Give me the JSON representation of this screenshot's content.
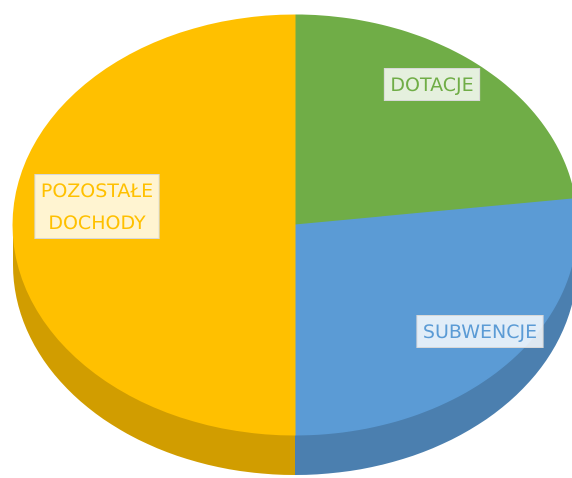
{
  "chart_data": {
    "type": "pie",
    "categories": [
      "DOTACJE",
      "SUBWENCJE",
      "POZOSTAŁE DOCHODY"
    ],
    "values": [
      23,
      27,
      50
    ],
    "colors": [
      "#70ad47",
      "#5b9bd5",
      "#ffc000"
    ]
  }
}
